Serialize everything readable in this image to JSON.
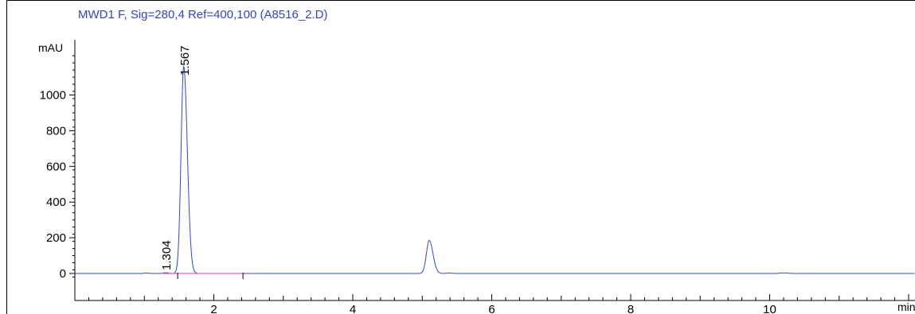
{
  "chart_data": {
    "type": "line",
    "title": "MWD1 F, Sig=280,4 Ref=400,100 (A8516_2.D)",
    "ylabel": "mAU",
    "xlabel": "min",
    "xlim": [
      0,
      12.2
    ],
    "ylim": [
      -30,
      1280
    ],
    "x_ticks": [
      2,
      4,
      6,
      8,
      10
    ],
    "y_ticks": [
      0,
      200,
      400,
      600,
      800,
      1000
    ],
    "series": [
      {
        "color": "#3344dd",
        "peaks": [
          {
            "rt": 1.02,
            "height": 2,
            "width": 0.03
          },
          {
            "rt": 1.304,
            "height": 4,
            "width": 0.03
          },
          {
            "rt": 1.567,
            "height": 1160,
            "width": 0.038
          },
          {
            "rt": 5.1,
            "height": 185,
            "width": 0.04
          },
          {
            "rt": 5.38,
            "height": 2,
            "width": 0.04
          },
          {
            "rt": 10.2,
            "height": 3,
            "width": 0.05
          }
        ]
      }
    ],
    "baseline_segments": [
      {
        "from": 1.27,
        "to": 2.42,
        "value": 0,
        "color": "#ff33cc"
      }
    ],
    "peak_labels": [
      {
        "rt": 1.567,
        "label": "1.567"
      },
      {
        "rt": 1.304,
        "label": "1.304"
      }
    ],
    "baseline_markers": [
      1.48,
      2.42
    ]
  }
}
